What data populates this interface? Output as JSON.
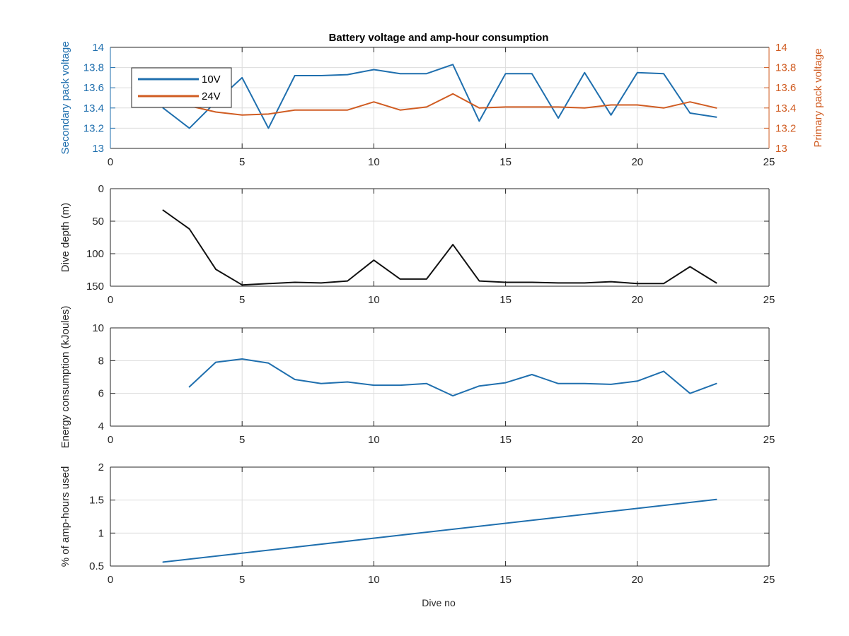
{
  "figure": {
    "title": "Battery voltage and amp-hour consumption",
    "xlabel": "Dive no"
  },
  "colors": {
    "blue": "#1f6fae",
    "orange": "#d05c22",
    "black": "#111111",
    "grid": "#dcdcdc",
    "axis": "#262626"
  },
  "chart_data": [
    {
      "type": "line",
      "title": "Battery voltage and amp-hour consumption",
      "xlim": [
        0,
        25
      ],
      "xticks": [
        "0",
        "5",
        "10",
        "15",
        "20",
        "25"
      ],
      "ylabel": "Secondary pack voltage",
      "ylim": [
        13,
        14
      ],
      "yticks": [
        "13",
        "13.2",
        "13.4",
        "13.6",
        "13.8",
        "14"
      ],
      "ylabel_right": "Primary pack voltage",
      "ylim_right": [
        13,
        14
      ],
      "yticks_right": [
        "13",
        "13.2",
        "13.4",
        "13.6",
        "13.8",
        "14"
      ],
      "grid": true,
      "legend": "top-left",
      "series": [
        {
          "name": "10V",
          "axis": "left",
          "color": "#1f6fae",
          "x": [
            2,
            3,
            4,
            5,
            6,
            7,
            8,
            9,
            10,
            11,
            12,
            13,
            14,
            15,
            16,
            17,
            18,
            19,
            20,
            21,
            22,
            23
          ],
          "y": [
            13.4,
            13.2,
            13.46,
            13.7,
            13.2,
            13.72,
            13.72,
            13.73,
            13.78,
            13.74,
            13.74,
            13.83,
            13.27,
            13.74,
            13.74,
            13.3,
            13.75,
            13.33,
            13.75,
            13.74,
            13.35,
            13.31
          ]
        },
        {
          "name": "24V",
          "axis": "right",
          "color": "#d05c22",
          "x": [
            2,
            3,
            4,
            5,
            6,
            7,
            8,
            9,
            10,
            11,
            12,
            13,
            14,
            15,
            16,
            17,
            18,
            19,
            20,
            21,
            22,
            23
          ],
          "y": [
            13.43,
            13.42,
            13.36,
            13.33,
            13.34,
            13.38,
            13.38,
            13.38,
            13.46,
            13.38,
            13.41,
            13.54,
            13.4,
            13.41,
            13.41,
            13.41,
            13.4,
            13.43,
            13.43,
            13.4,
            13.46,
            13.4
          ]
        }
      ]
    },
    {
      "type": "line",
      "xlim": [
        0,
        25
      ],
      "xticks": [
        "0",
        "5",
        "10",
        "15",
        "20",
        "25"
      ],
      "ylabel": "Dive depth (m)",
      "ylim": [
        0,
        150
      ],
      "y_reversed": true,
      "yticks": [
        "0",
        "50",
        "100",
        "150"
      ],
      "grid": true,
      "series": [
        {
          "color": "#111111",
          "x": [
            2,
            3,
            4,
            5,
            6,
            7,
            8,
            9,
            10,
            11,
            12,
            13,
            14,
            15,
            16,
            17,
            18,
            19,
            20,
            21,
            22,
            23
          ],
          "y": [
            33,
            62,
            124,
            148,
            146,
            144,
            145,
            142,
            110,
            139,
            139,
            86,
            142,
            144,
            144,
            145,
            145,
            143,
            146,
            146,
            120,
            145
          ]
        }
      ]
    },
    {
      "type": "line",
      "xlim": [
        0,
        25
      ],
      "xticks": [
        "0",
        "5",
        "10",
        "15",
        "20",
        "25"
      ],
      "ylabel": "Energy consumption (kJoules)",
      "ylim": [
        4,
        10
      ],
      "yticks": [
        "4",
        "6",
        "8",
        "10"
      ],
      "grid": true,
      "series": [
        {
          "color": "#1f6fae",
          "x": [
            3,
            4,
            5,
            6,
            7,
            8,
            9,
            10,
            11,
            12,
            13,
            14,
            15,
            16,
            17,
            18,
            19,
            20,
            21,
            22,
            23
          ],
          "y": [
            6.4,
            7.9,
            8.1,
            7.85,
            6.85,
            6.6,
            6.7,
            6.5,
            6.5,
            6.6,
            5.85,
            6.45,
            6.65,
            7.15,
            6.6,
            6.6,
            6.55,
            6.75,
            7.35,
            6.0,
            6.6
          ]
        }
      ]
    },
    {
      "type": "line",
      "xlim": [
        0,
        25
      ],
      "xticks": [
        "0",
        "5",
        "10",
        "15",
        "20",
        "25"
      ],
      "xlabel": "Dive no",
      "ylabel": "% of amp-hours used",
      "ylim": [
        0.5,
        2
      ],
      "yticks": [
        "0.5",
        "1",
        "1.5",
        "2"
      ],
      "grid": true,
      "series": [
        {
          "color": "#1f6fae",
          "x": [
            2,
            23
          ],
          "y": [
            0.56,
            1.51
          ]
        }
      ]
    }
  ]
}
